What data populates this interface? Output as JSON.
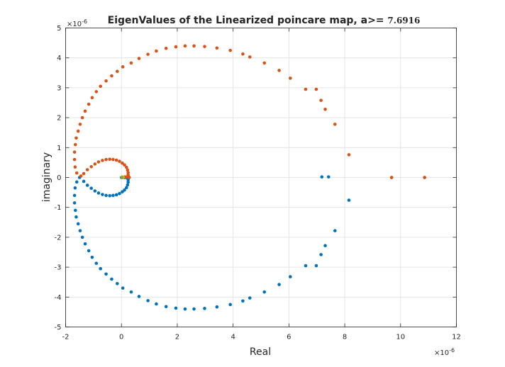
{
  "figure": {
    "title_main": "EigenValues of the Linearized poincare map, a>= ",
    "title_value": "7.6916",
    "x_exponent": "×10",
    "x_exponent_power": "-6",
    "y_exponent": "×10",
    "y_exponent_power": "-6"
  },
  "chart_data": {
    "type": "scatter",
    "title": "EigenValues of the Linearized poincare map, a>= 7.6916",
    "xlabel": "Real",
    "ylabel": "imaginary",
    "xlim": [
      -2,
      12
    ],
    "ylim": [
      -5,
      5
    ],
    "x_scale_label": "×10^-6",
    "y_scale_label": "×10^-6",
    "xticks": [
      "-2",
      "0",
      "2",
      "4",
      "6",
      "8",
      "10",
      "12"
    ],
    "yticks": [
      "-5",
      "-4",
      "-3",
      "-2",
      "-1",
      "0",
      "1",
      "2",
      "3",
      "4",
      "5"
    ],
    "grid": true,
    "colors": {
      "series_1": "#0072BD",
      "series_2": "#D95319",
      "series_3": "#EDB120",
      "series_4": "#77AC30"
    },
    "series": [
      {
        "color": "#0072BD",
        "points": [
          [
            10.86,
            0.0
          ],
          [
            9.68,
            0.0
          ],
          [
            8.15,
            -0.76
          ],
          [
            7.65,
            -1.78
          ],
          [
            7.3,
            -2.28
          ],
          [
            7.15,
            -2.58
          ],
          [
            6.98,
            -2.95
          ],
          [
            6.6,
            -2.95
          ],
          [
            6.05,
            -3.32
          ],
          [
            5.65,
            -3.58
          ],
          [
            5.12,
            -3.83
          ],
          [
            4.6,
            -4.03
          ],
          [
            4.35,
            -4.13
          ],
          [
            3.9,
            -4.25
          ],
          [
            3.42,
            -4.33
          ],
          [
            2.98,
            -4.38
          ],
          [
            2.6,
            -4.4
          ],
          [
            2.28,
            -4.4
          ],
          [
            1.95,
            -4.37
          ],
          [
            1.6,
            -4.32
          ],
          [
            1.25,
            -4.23
          ],
          [
            0.95,
            -4.12
          ],
          [
            0.63,
            -3.98
          ],
          [
            0.35,
            -3.83
          ],
          [
            0.05,
            -3.7
          ],
          [
            -0.15,
            -3.55
          ],
          [
            -0.35,
            -3.4
          ],
          [
            -0.55,
            -3.23
          ],
          [
            -0.75,
            -3.05
          ],
          [
            -0.9,
            -2.87
          ],
          [
            -1.05,
            -2.67
          ],
          [
            -1.17,
            -2.45
          ],
          [
            -1.3,
            -2.22
          ],
          [
            -1.4,
            -2.0
          ],
          [
            -1.48,
            -1.78
          ],
          [
            -1.55,
            -1.55
          ],
          [
            -1.62,
            -1.32
          ],
          [
            -1.65,
            -1.1
          ],
          [
            -1.68,
            -0.85
          ],
          [
            -1.68,
            -0.6
          ],
          [
            -1.66,
            -0.35
          ],
          [
            -1.6,
            -0.15
          ],
          [
            -1.5,
            0.0
          ],
          [
            -1.35,
            -0.13
          ],
          [
            -1.22,
            -0.26
          ],
          [
            -1.08,
            -0.36
          ],
          [
            -0.95,
            -0.45
          ],
          [
            -0.82,
            -0.52
          ],
          [
            -0.68,
            -0.57
          ],
          [
            -0.55,
            -0.6
          ],
          [
            -0.42,
            -0.61
          ],
          [
            -0.3,
            -0.6
          ],
          [
            -0.18,
            -0.58
          ],
          [
            -0.07,
            -0.54
          ],
          [
            0.03,
            -0.48
          ],
          [
            0.11,
            -0.42
          ],
          [
            0.18,
            -0.34
          ],
          [
            0.22,
            -0.25
          ],
          [
            0.24,
            -0.16
          ],
          [
            0.24,
            -0.08
          ],
          [
            0.22,
            -0.02
          ],
          [
            0.16,
            0.0
          ],
          [
            0.1,
            0.0
          ],
          [
            0.05,
            0.0
          ],
          [
            0.0,
            0.0
          ],
          [
            7.18,
            0.02
          ],
          [
            7.42,
            0.02
          ]
        ]
      },
      {
        "color": "#D95319",
        "points": [
          [
            10.86,
            0.0
          ],
          [
            9.68,
            0.0
          ],
          [
            8.15,
            0.76
          ],
          [
            7.65,
            1.78
          ],
          [
            7.3,
            2.28
          ],
          [
            7.15,
            2.58
          ],
          [
            6.98,
            2.95
          ],
          [
            6.6,
            2.95
          ],
          [
            6.05,
            3.32
          ],
          [
            5.65,
            3.58
          ],
          [
            5.12,
            3.83
          ],
          [
            4.6,
            4.03
          ],
          [
            4.35,
            4.13
          ],
          [
            3.9,
            4.25
          ],
          [
            3.42,
            4.33
          ],
          [
            2.98,
            4.38
          ],
          [
            2.6,
            4.4
          ],
          [
            2.28,
            4.4
          ],
          [
            1.95,
            4.37
          ],
          [
            1.6,
            4.32
          ],
          [
            1.25,
            4.23
          ],
          [
            0.95,
            4.12
          ],
          [
            0.63,
            3.98
          ],
          [
            0.35,
            3.83
          ],
          [
            0.05,
            3.7
          ],
          [
            -0.15,
            3.55
          ],
          [
            -0.35,
            3.4
          ],
          [
            -0.55,
            3.23
          ],
          [
            -0.75,
            3.05
          ],
          [
            -0.9,
            2.87
          ],
          [
            -1.05,
            2.67
          ],
          [
            -1.17,
            2.45
          ],
          [
            -1.3,
            2.22
          ],
          [
            -1.4,
            2.0
          ],
          [
            -1.48,
            1.78
          ],
          [
            -1.55,
            1.55
          ],
          [
            -1.62,
            1.32
          ],
          [
            -1.65,
            1.1
          ],
          [
            -1.68,
            0.85
          ],
          [
            -1.68,
            0.6
          ],
          [
            -1.66,
            0.35
          ],
          [
            -1.6,
            0.15
          ],
          [
            -1.45,
            0.05
          ],
          [
            -1.35,
            0.13
          ],
          [
            -1.22,
            0.26
          ],
          [
            -1.08,
            0.36
          ],
          [
            -0.95,
            0.45
          ],
          [
            -0.82,
            0.52
          ],
          [
            -0.68,
            0.57
          ],
          [
            -0.55,
            0.6
          ],
          [
            -0.42,
            0.61
          ],
          [
            -0.3,
            0.6
          ],
          [
            -0.18,
            0.58
          ],
          [
            -0.07,
            0.54
          ],
          [
            0.03,
            0.48
          ],
          [
            0.11,
            0.42
          ],
          [
            0.18,
            0.34
          ],
          [
            0.22,
            0.25
          ],
          [
            0.24,
            0.16
          ],
          [
            0.24,
            0.08
          ],
          [
            0.26,
            0.02
          ],
          [
            0.28,
            0.0
          ],
          [
            0.2,
            0.02
          ],
          [
            0.12,
            0.02
          ]
        ]
      },
      {
        "color": "#EDB120",
        "points": [
          [
            0.03,
            0.02
          ],
          [
            0.06,
            0.01
          ]
        ]
      },
      {
        "color": "#77AC30",
        "points": [
          [
            0.02,
            0.0
          ]
        ]
      }
    ]
  }
}
